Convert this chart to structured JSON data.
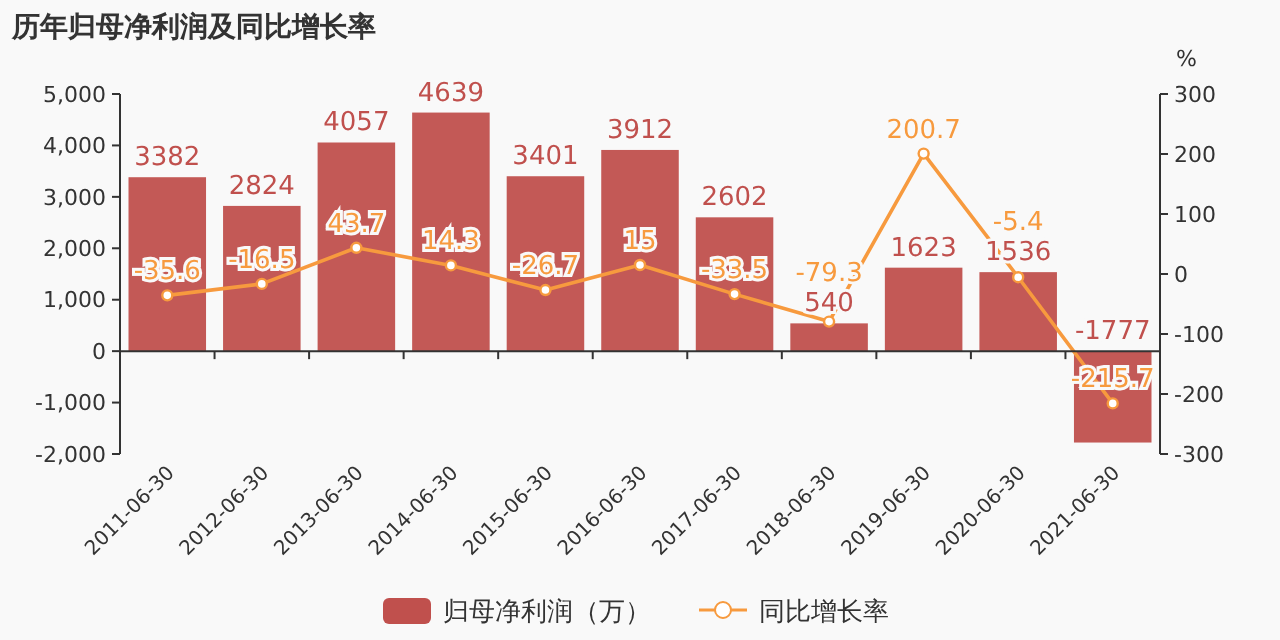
{
  "chart_data": {
    "type": "bar",
    "title": "历年归母净利润及同比增长率",
    "y2label": "%",
    "categories": [
      "2011-06-30",
      "2012-06-30",
      "2013-06-30",
      "2014-06-30",
      "2015-06-30",
      "2016-06-30",
      "2017-06-30",
      "2018-06-30",
      "2019-06-30",
      "2020-06-30",
      "2021-06-30"
    ],
    "series": [
      {
        "name": "归母净利润（万）",
        "color": "#c0504d",
        "values": [
          3382,
          2824,
          4057,
          4639,
          3401,
          3912,
          2602,
          540,
          1623,
          1536,
          -1777
        ]
      },
      {
        "name": "同比增长率",
        "type": "line",
        "axis": "y2",
        "color": "#f79a3e",
        "marker": "circle",
        "values": [
          -35.6,
          -16.5,
          43.7,
          14.3,
          -26.7,
          15,
          -33.5,
          -79.3,
          200.7,
          -5.4,
          -215.7
        ]
      }
    ],
    "ylim": [
      -2000,
      5000
    ],
    "yticks": [
      {
        "value": -2000,
        "label": "-2,000"
      },
      {
        "value": -1000,
        "label": "-1,000"
      },
      0,
      {
        "value": 1000,
        "label": "1,000"
      },
      {
        "value": 2000,
        "label": "2,000"
      },
      {
        "value": 3000,
        "label": "3,000"
      },
      {
        "value": 4000,
        "label": "4,000"
      },
      {
        "value": 5000,
        "label": "5,000"
      }
    ],
    "y2lim": [
      -300,
      300
    ],
    "y2ticks": [
      -300,
      -200,
      -100,
      0,
      100,
      200,
      300
    ],
    "data_labels": true,
    "legend": "bottom"
  }
}
